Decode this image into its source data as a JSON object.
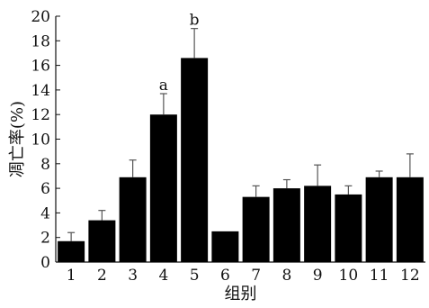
{
  "chart_data": {
    "type": "bar",
    "title": "",
    "xlabel": "组别",
    "ylabel": "凋亡率(%)",
    "ylim": [
      0,
      20
    ],
    "yticks": [
      0,
      2,
      4,
      6,
      8,
      10,
      12,
      14,
      16,
      18,
      20
    ],
    "categories": [
      "1",
      "2",
      "3",
      "4",
      "5",
      "6",
      "7",
      "8",
      "9",
      "10",
      "11",
      "12"
    ],
    "values": [
      1.7,
      3.4,
      6.9,
      12.0,
      16.6,
      2.5,
      5.3,
      6.0,
      6.2,
      5.5,
      6.9,
      6.9
    ],
    "errors": [
      0.7,
      0.8,
      1.4,
      1.7,
      2.4,
      0.0,
      0.9,
      0.7,
      1.7,
      0.7,
      0.5,
      1.9
    ],
    "annotations": [
      {
        "category": "4",
        "text": "a"
      },
      {
        "category": "5",
        "text": "b"
      }
    ],
    "grid": false,
    "legend": "none",
    "bar_color": "#000000",
    "error_color": "#555555"
  }
}
